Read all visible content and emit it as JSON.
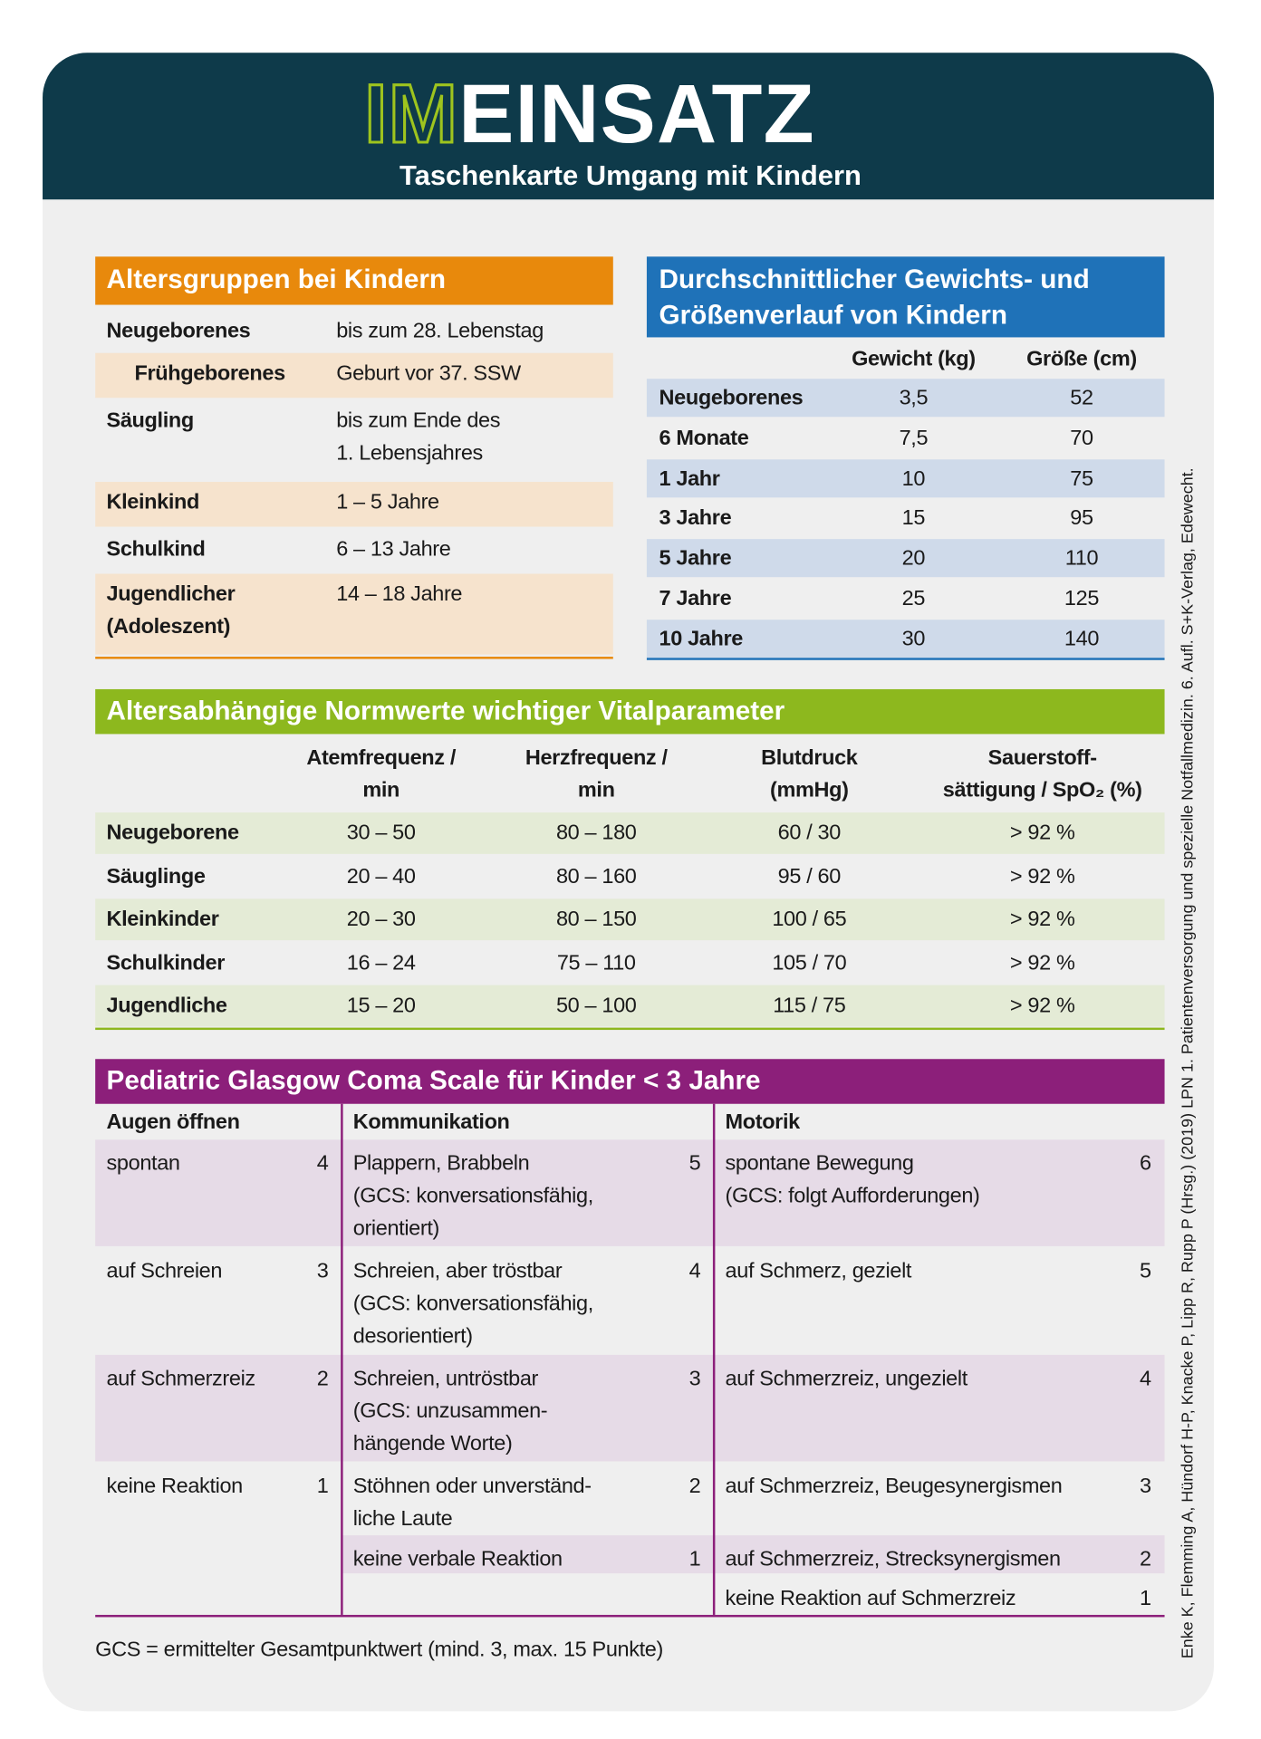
{
  "header": {
    "brand_1": "IM",
    "brand_2": "EINSATZ",
    "subtitle": "Taschenkarte Umgang mit Kindern"
  },
  "side_note": "Enke K, Flemming A, Hündorf H-P, Knacke P, Lipp R, Rupp P (Hrsg.) (2019) LPN 1. Patientenversorgung und spezielle Notfallmedizin. 6. Aufl. S+K-Verlag, Edewecht.",
  "age_groups": {
    "title": "Altersgruppen bei Kindern",
    "rows": [
      [
        "Neugeborenes",
        "bis zum 28. Lebenstag"
      ],
      [
        "Frühgeborenes",
        "Geburt vor 37. SSW"
      ],
      [
        "Säugling",
        "bis zum Ende des\n1. Lebensjahres"
      ],
      [
        "Kleinkind",
        "1 – 5 Jahre"
      ],
      [
        "Schulkind",
        "6 – 13 Jahre"
      ],
      [
        "Jugendlicher\n(Adoleszent)",
        "14 – 18 Jahre"
      ]
    ]
  },
  "growth": {
    "title": "Durchschnittlicher Gewichts- und\nGrößenverlauf von Kindern",
    "columns": [
      "Gewicht (kg)",
      "Größe (cm)"
    ],
    "rows": [
      [
        "Neugeborenes",
        "3,5",
        "52"
      ],
      [
        "6 Monate",
        "7,5",
        "70"
      ],
      [
        "1 Jahr",
        "10",
        "75"
      ],
      [
        "3 Jahre",
        "15",
        "95"
      ],
      [
        "5 Jahre",
        "20",
        "110"
      ],
      [
        "7 Jahre",
        "25",
        "125"
      ],
      [
        "10 Jahre",
        "30",
        "140"
      ]
    ]
  },
  "vitals": {
    "title": "Altersabhängige Normwerte wichtiger Vitalparameter",
    "columns": [
      "Atemfrequenz /\nmin",
      "Herzfrequenz /\nmin",
      "Blutdruck\n(mmHg)",
      "Sauerstoff-\nsättigung / SpO₂ (%)"
    ],
    "rows": [
      [
        "Neugeborene",
        "30 – 50",
        "80 – 180",
        "60 / 30",
        "> 92 %"
      ],
      [
        "Säuglinge",
        "20 – 40",
        "80 – 160",
        "95 / 60",
        "> 92 %"
      ],
      [
        "Kleinkinder",
        "20 – 30",
        "80 – 150",
        "100 / 65",
        "> 92 %"
      ],
      [
        "Schulkinder",
        "16 – 24",
        "75 – 110",
        "105 / 70",
        "> 92 %"
      ],
      [
        "Jugendliche",
        "15 – 20",
        "50 – 100",
        "115 / 75",
        "> 92 %"
      ]
    ]
  },
  "gcs": {
    "title": "Pediatric Glasgow Coma Scale für Kinder < 3 Jahre",
    "columns": [
      "Augen öffnen",
      "Kommunikation",
      "Motorik"
    ],
    "rows": [
      [
        {
          "text": "spontan",
          "score": 4
        },
        {
          "text": "Plappern, Brabbeln\n(GCS: konversationsfähig,\norientiert)",
          "score": 5
        },
        {
          "text": "spontane Bewegung\n(GCS: folgt Aufforderungen)",
          "score": 6
        }
      ],
      [
        {
          "text": "auf Schreien",
          "score": 3
        },
        {
          "text": "Schreien, aber tröstbar\n(GCS: konversationsfähig,\ndesorientiert)",
          "score": 4
        },
        {
          "text": "auf Schmerz, gezielt",
          "score": 5
        }
      ],
      [
        {
          "text": "auf Schmerzreiz",
          "score": 2
        },
        {
          "text": "Schreien, untröstbar\n(GCS: unzusammen-\nhängende Worte)",
          "score": 3
        },
        {
          "text": "auf Schmerzreiz, ungezielt",
          "score": 4
        }
      ],
      [
        {
          "text": "keine Reaktion",
          "score": 1
        },
        {
          "text": "Stöhnen oder unverständ-\nliche Laute",
          "score": 2
        },
        {
          "text": "auf Schmerzreiz, Beugesynergismen",
          "score": 3
        }
      ],
      [
        null,
        {
          "text": "keine verbale Reaktion",
          "score": 1
        },
        {
          "text": "auf Schmerzreiz, Strecksynergismen",
          "score": 2
        }
      ],
      [
        null,
        null,
        {
          "text": "keine Reaktion auf Schmerzreiz",
          "score": 1
        }
      ]
    ],
    "footnote": "GCS = ermittelter Gesamtpunktwert (mind. 3, max. 15 Punkte)"
  }
}
